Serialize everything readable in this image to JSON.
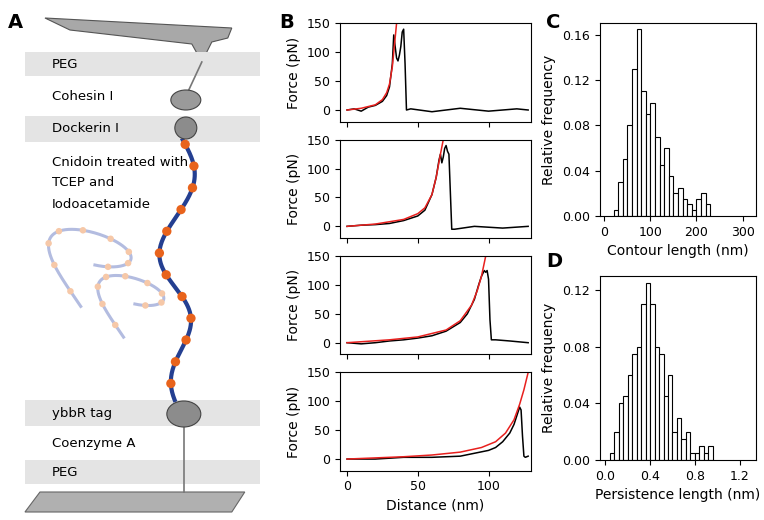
{
  "panel_labels": [
    "A",
    "B",
    "C",
    "D"
  ],
  "diagram": {
    "top_layers": [
      "PEG",
      "Cohesin I",
      "Dockerin I"
    ],
    "polymer": [
      "Cnidoin treated with",
      "TCEP and",
      "Iodoacetamide"
    ],
    "bottom_layers": [
      "ybbR tag",
      "Coenzyme A",
      "PEG"
    ]
  },
  "chart_data": [
    {
      "type": "line",
      "ylabel": "Force (pN)",
      "xlim": [
        -5,
        130
      ],
      "ylim": [
        -20,
        150
      ],
      "xticks": [
        0,
        50,
        100
      ],
      "yticks": [
        0,
        50,
        100,
        150
      ],
      "tick_labels": "y",
      "series": [
        {
          "color": "#000000",
          "x": [
            0,
            5,
            10,
            15,
            20,
            25,
            28,
            30,
            32,
            33,
            34,
            35,
            36,
            37,
            38,
            39,
            40,
            41,
            42,
            45,
            60,
            80,
            100,
            120,
            128
          ],
          "values": [
            0,
            2,
            -2,
            5,
            8,
            15,
            25,
            40,
            80,
            130,
            110,
            90,
            85,
            95,
            110,
            135,
            140,
            80,
            0,
            2,
            -3,
            3,
            -2,
            2,
            0
          ]
        },
        {
          "color": "#e8201e",
          "x": [
            0,
            10,
            20,
            25,
            28,
            30,
            32,
            34,
            35
          ],
          "values": [
            0,
            3,
            9,
            18,
            30,
            45,
            75,
            125,
            150
          ]
        }
      ]
    },
    {
      "type": "line",
      "ylabel": "Force (pN)",
      "xlim": [
        -5,
        130
      ],
      "ylim": [
        -20,
        150
      ],
      "xticks": [
        0,
        50,
        100
      ],
      "yticks": [
        0,
        50,
        100,
        150
      ],
      "tick_labels": "y",
      "series": [
        {
          "color": "#000000",
          "x": [
            0,
            10,
            20,
            30,
            40,
            50,
            55,
            60,
            63,
            65,
            66,
            67,
            68,
            69,
            70,
            71,
            72,
            73,
            74,
            76,
            90,
            110,
            128
          ],
          "values": [
            0,
            2,
            3,
            5,
            10,
            18,
            28,
            55,
            85,
            115,
            125,
            110,
            120,
            135,
            140,
            130,
            125,
            60,
            -5,
            -5,
            0,
            -3,
            0
          ]
        },
        {
          "color": "#e8201e",
          "x": [
            0,
            20,
            40,
            50,
            55,
            60,
            63,
            66,
            68
          ],
          "values": [
            0,
            4,
            12,
            22,
            32,
            55,
            85,
            125,
            150
          ]
        }
      ]
    },
    {
      "type": "line",
      "ylabel": "Force (pN)",
      "xlim": [
        -5,
        130
      ],
      "ylim": [
        -20,
        150
      ],
      "xticks": [
        0,
        50,
        100
      ],
      "yticks": [
        0,
        50,
        100,
        150
      ],
      "tick_labels": "y",
      "series": [
        {
          "color": "#000000",
          "x": [
            0,
            10,
            20,
            30,
            40,
            50,
            60,
            70,
            80,
            85,
            90,
            93,
            95,
            97,
            98,
            99,
            100,
            101,
            102,
            105,
            115,
            128
          ],
          "values": [
            0,
            -2,
            0,
            3,
            5,
            8,
            12,
            20,
            35,
            50,
            75,
            100,
            115,
            125,
            122,
            125,
            110,
            40,
            5,
            5,
            3,
            0
          ]
        },
        {
          "color": "#e8201e",
          "x": [
            0,
            30,
            50,
            70,
            80,
            88,
            92,
            95,
            98
          ],
          "values": [
            0,
            5,
            10,
            22,
            38,
            65,
            90,
            115,
            150
          ]
        }
      ]
    },
    {
      "type": "line",
      "ylabel": "Force (pN)",
      "xlabel": "Distance (nm)",
      "xlim": [
        -5,
        130
      ],
      "ylim": [
        -20,
        150
      ],
      "xticks": [
        0,
        50,
        100
      ],
      "yticks": [
        0,
        50,
        100,
        150
      ],
      "series": [
        {
          "color": "#000000",
          "x": [
            0,
            20,
            40,
            60,
            80,
            90,
            100,
            105,
            110,
            115,
            118,
            120,
            122,
            123,
            124,
            125,
            126,
            128
          ],
          "values": [
            0,
            0,
            3,
            3,
            5,
            10,
            15,
            20,
            30,
            45,
            60,
            75,
            90,
            85,
            40,
            5,
            3,
            5
          ]
        },
        {
          "color": "#e8201e",
          "x": [
            0,
            40,
            60,
            80,
            95,
            105,
            112,
            118,
            122,
            125,
            128
          ],
          "values": [
            0,
            4,
            7,
            12,
            20,
            30,
            45,
            68,
            95,
            120,
            150
          ]
        }
      ]
    },
    {
      "type": "histogram",
      "xlabel": "Contour length (nm)",
      "ylabel": "Relative frequency",
      "color": "#ffffff",
      "bins": [
        20,
        30,
        40,
        50,
        60,
        70,
        80,
        90,
        100,
        110,
        120,
        130,
        140,
        150,
        160,
        170,
        180,
        190,
        200,
        210,
        220,
        230
      ],
      "counts": [
        0.005,
        0.03,
        0.05,
        0.08,
        0.13,
        0.165,
        0.11,
        0.09,
        0.1,
        0.07,
        0.045,
        0.06,
        0.035,
        0.02,
        0.025,
        0.015,
        0.01,
        0.005,
        0.015,
        0.02,
        0.01
      ],
      "xlim": [
        -10,
        330
      ],
      "ylim": [
        0,
        0.17
      ],
      "xticks": [
        0,
        100,
        200,
        300
      ],
      "yticks": [
        {
          "value": 0,
          "label": "0.00"
        },
        {
          "value": 0.04,
          "label": "0.04"
        },
        {
          "value": 0.08,
          "label": "0.08"
        },
        {
          "value": 0.12,
          "label": "0.12"
        },
        {
          "value": 0.16,
          "label": "0.16"
        }
      ]
    },
    {
      "type": "histogram",
      "xlabel": "Persistence length (nm)",
      "ylabel": "Relative frequency",
      "color": "#ffffff",
      "bins": [
        0.04,
        0.08,
        0.12,
        0.16,
        0.2,
        0.24,
        0.28,
        0.32,
        0.36,
        0.4,
        0.44,
        0.48,
        0.52,
        0.56,
        0.6,
        0.64,
        0.68,
        0.72,
        0.76,
        0.8,
        0.84,
        0.88,
        0.92,
        0.96
      ],
      "counts": [
        0.005,
        0.02,
        0.04,
        0.045,
        0.06,
        0.075,
        0.08,
        0.11,
        0.125,
        0.11,
        0.08,
        0.075,
        0.045,
        0.06,
        0.02,
        0.03,
        0.015,
        0.02,
        0.005,
        0.005,
        0.01,
        0.005,
        0.01
      ],
      "xlim": [
        -0.05,
        1.35
      ],
      "ylim": [
        0,
        0.13
      ],
      "xticks": [
        0.0,
        0.4,
        0.8,
        1.2
      ],
      "yticks": [
        {
          "value": 0,
          "label": "0.00"
        },
        {
          "value": 0.04,
          "label": "0.04"
        },
        {
          "value": 0.08,
          "label": "0.08"
        },
        {
          "value": 0.12,
          "label": "0.12"
        }
      ]
    }
  ]
}
